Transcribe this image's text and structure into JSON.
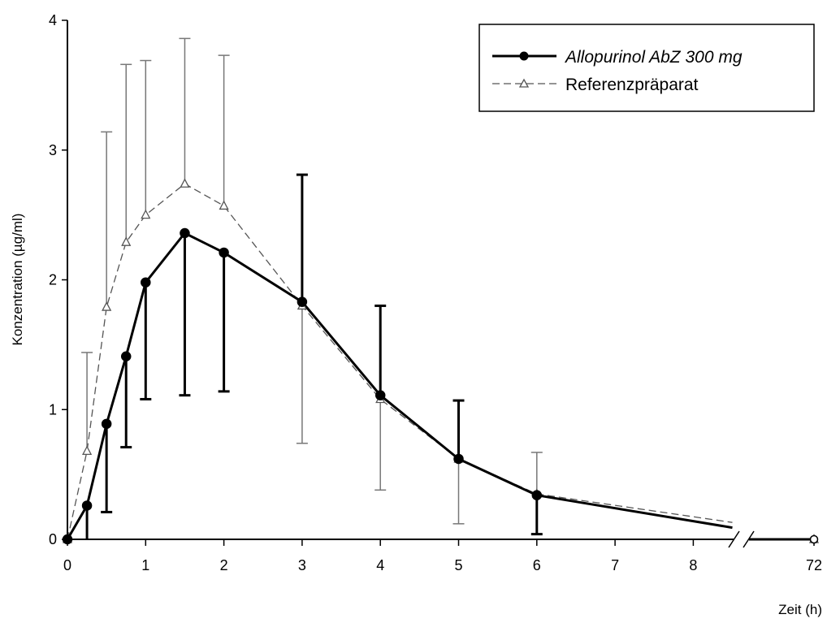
{
  "chart_data": {
    "type": "line",
    "xlabel": "Zeit (h)",
    "ylabel": "Konzentration (µg/ml)",
    "ylim": [
      0,
      4
    ],
    "yticks": [
      "0",
      "1",
      "2",
      "3",
      "4"
    ],
    "xticks": [
      "0",
      "1",
      "2",
      "3",
      "4",
      "5",
      "6",
      "7",
      "8",
      "72"
    ],
    "x_axis_break": "between 8 and 72",
    "legend_position": "top-right",
    "series": [
      {
        "name": "Allopurinol AbZ 300 mg",
        "style": "solid, filled circles",
        "color": "#000000",
        "points": [
          {
            "x": 0,
            "y": 0
          },
          {
            "x": 0.25,
            "y": 0.26,
            "err_low": 0,
            "err_high": null
          },
          {
            "x": 0.5,
            "y": 0.89,
            "err_low": 0.21,
            "err_high": null
          },
          {
            "x": 0.75,
            "y": 1.41,
            "err_low": 0.71,
            "err_high": null
          },
          {
            "x": 1,
            "y": 1.98,
            "err_low": 1.08,
            "err_high": null
          },
          {
            "x": 1.5,
            "y": 2.36,
            "err_low": 1.11,
            "err_high": null
          },
          {
            "x": 2,
            "y": 2.21,
            "err_low": 1.14,
            "err_high": null
          },
          {
            "x": 3,
            "y": 1.83,
            "err_low": null,
            "err_high": 2.81
          },
          {
            "x": 4,
            "y": 1.11,
            "err_low": null,
            "err_high": 1.8
          },
          {
            "x": 5,
            "y": 0.62,
            "err_low": null,
            "err_high": 1.07
          },
          {
            "x": 6,
            "y": 0.34,
            "err_low": 0.04,
            "err_high": null
          },
          {
            "x": 8.5,
            "y": 0.09
          },
          {
            "x": 72,
            "y": 0
          }
        ]
      },
      {
        "name": "Referenzpräparat",
        "style": "dashed, open triangles",
        "color": "#555555",
        "points": [
          {
            "x": 0,
            "y": 0
          },
          {
            "x": 0.25,
            "y": 0.68,
            "err_low": null,
            "err_high": 1.44
          },
          {
            "x": 0.5,
            "y": 1.79,
            "err_low": null,
            "err_high": 3.14
          },
          {
            "x": 0.75,
            "y": 2.29,
            "err_low": null,
            "err_high": 3.66
          },
          {
            "x": 1,
            "y": 2.5,
            "err_low": null,
            "err_high": 3.69
          },
          {
            "x": 1.5,
            "y": 2.74,
            "err_low": null,
            "err_high": 3.86
          },
          {
            "x": 2,
            "y": 2.57,
            "err_low": null,
            "err_high": 3.73
          },
          {
            "x": 3,
            "y": 1.8,
            "err_low": 0.74,
            "err_high": null
          },
          {
            "x": 4,
            "y": 1.08,
            "err_low": 0.38,
            "err_high": null
          },
          {
            "x": 5,
            "y": 0.62,
            "err_low": 0.12,
            "err_high": null
          },
          {
            "x": 6,
            "y": 0.35,
            "err_low": null,
            "err_high": 0.67
          },
          {
            "x": 8.5,
            "y": 0.13
          },
          {
            "x": 72,
            "y": 0
          }
        ]
      }
    ]
  }
}
